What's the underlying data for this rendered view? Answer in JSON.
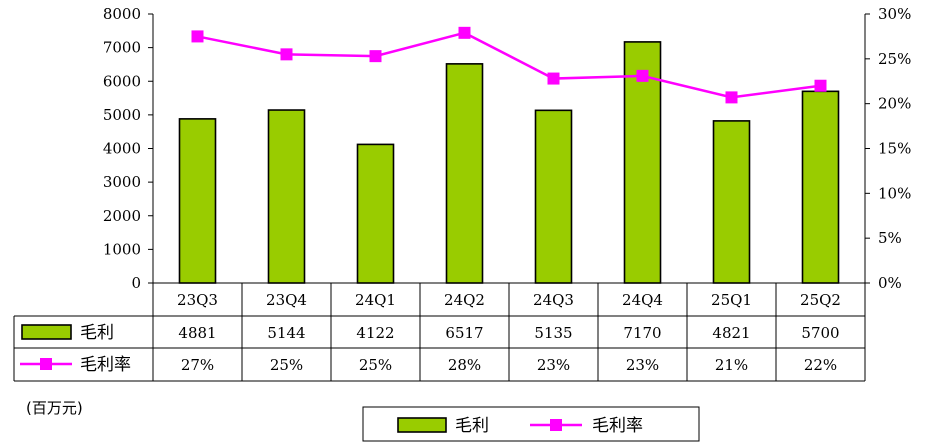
{
  "chart_data": {
    "type": "bar",
    "categories": [
      "23Q3",
      "23Q4",
      "24Q1",
      "24Q2",
      "24Q3",
      "24Q4",
      "25Q1",
      "25Q2"
    ],
    "series": [
      {
        "name": "毛利",
        "type": "bar",
        "axis": "left",
        "color": "#99cc00",
        "values": [
          4881,
          5144,
          4122,
          6517,
          5135,
          7170,
          4821,
          5700
        ]
      },
      {
        "name": "毛利率",
        "type": "line",
        "axis": "right",
        "color": "#ff00ff",
        "values": [
          0.275,
          0.255,
          0.253,
          0.279,
          0.228,
          0.231,
          0.207,
          0.22
        ],
        "table_labels": [
          "27%",
          "25%",
          "25%",
          "28%",
          "23%",
          "23%",
          "21%",
          "22%"
        ]
      }
    ],
    "ylim_left": [
      0,
      8000
    ],
    "yticks_left": [
      "0",
      "1000",
      "2000",
      "3000",
      "4000",
      "5000",
      "6000",
      "7000",
      "8000"
    ],
    "ylim_right": [
      0,
      0.3
    ],
    "yticks_right": [
      "0%",
      "5%",
      "10%",
      "15%",
      "20%",
      "25%",
      "30%"
    ],
    "unit_label": "(百万元)",
    "grid": false,
    "legend_position": "bottom"
  }
}
